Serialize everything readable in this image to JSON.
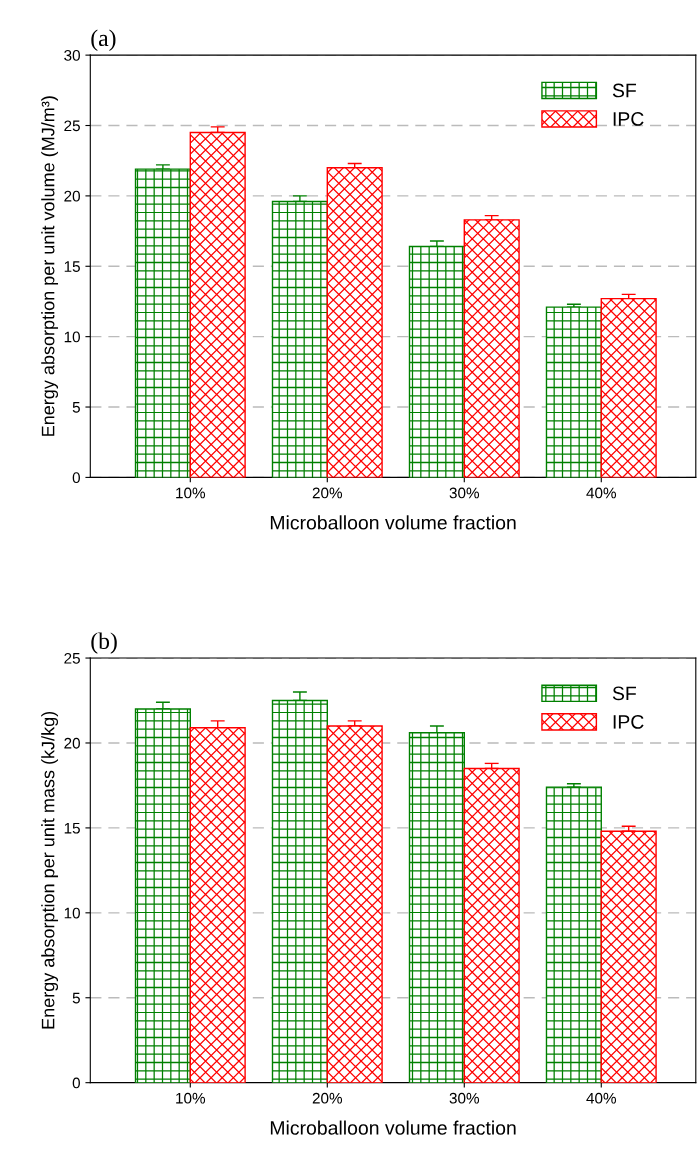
{
  "chart_data": [
    {
      "type": "bar",
      "title": "(a)",
      "xlabel": "Microballoon volume fraction",
      "ylabel": "Energy absorption per unit volume (MJ/m³)",
      "categories": [
        "10%",
        "20%",
        "30%",
        "40%"
      ],
      "series": [
        {
          "name": "SF",
          "color": "#008000",
          "values": [
            21.9,
            19.6,
            16.4,
            12.1
          ],
          "errors": [
            [
              21.9,
              22.2
            ],
            [
              19.6,
              20.0
            ],
            [
              16.4,
              16.8
            ],
            [
              12.1,
              12.3
            ]
          ]
        },
        {
          "name": "IPC",
          "color": "#ff0000",
          "values": [
            24.5,
            22.0,
            18.3,
            12.7
          ],
          "errors": [
            [
              24.5,
              24.9
            ],
            [
              22.0,
              22.3
            ],
            [
              18.3,
              18.6
            ],
            [
              12.7,
              13.0
            ]
          ]
        }
      ],
      "ylim": [
        0,
        30
      ],
      "yticks": [
        0,
        5,
        10,
        15,
        20,
        25,
        30
      ],
      "grid": "y",
      "legend": "top right"
    },
    {
      "type": "bar",
      "title": "(b)",
      "xlabel": "Microballoon volume fraction",
      "ylabel": "Energy absorption per unit mass (kJ/kg)",
      "categories": [
        "10%",
        "20%",
        "30%",
        "40%"
      ],
      "series": [
        {
          "name": "SF",
          "color": "#008000",
          "values": [
            22.0,
            22.5,
            20.6,
            17.4
          ],
          "errors": [
            [
              22.0,
              22.4
            ],
            [
              22.5,
              23.0
            ],
            [
              20.6,
              21.0
            ],
            [
              17.4,
              17.6
            ]
          ]
        },
        {
          "name": "IPC",
          "color": "#ff0000",
          "values": [
            20.9,
            21.0,
            18.5,
            14.8
          ],
          "errors": [
            [
              20.9,
              21.3
            ],
            [
              21.0,
              21.3
            ],
            [
              18.5,
              18.8
            ],
            [
              14.8,
              15.1
            ]
          ]
        }
      ],
      "ylim": [
        0,
        25
      ],
      "yticks": [
        0,
        5,
        10,
        15,
        20,
        25
      ],
      "grid": "y",
      "legend": "top right"
    }
  ]
}
